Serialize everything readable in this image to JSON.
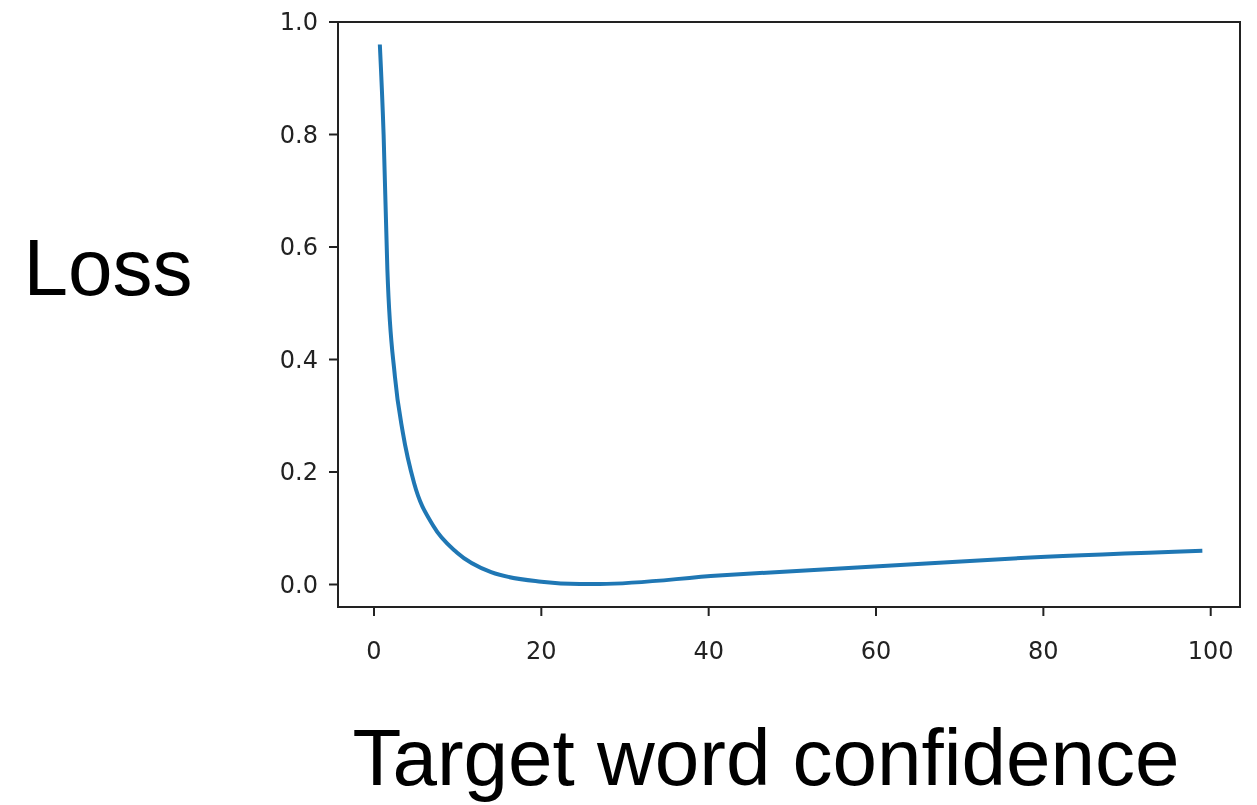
{
  "chart_data": {
    "type": "line",
    "xlabel": "Target word confidence",
    "ylabel": "Loss",
    "xlim": [
      -4.3,
      103.5
    ],
    "ylim": [
      -0.04,
      1.0
    ],
    "xticks": [
      0,
      20,
      40,
      60,
      80,
      100
    ],
    "yticks": [
      {
        "value": 0,
        "label": "0.0"
      },
      {
        "value": 0.2,
        "label": "0.2"
      },
      {
        "value": 0.4,
        "label": "0.4"
      },
      {
        "value": 0.6,
        "label": "0.6"
      },
      {
        "value": 0.8,
        "label": "0.8"
      },
      {
        "value": 1,
        "label": "1.0"
      }
    ],
    "grid": false,
    "series": [
      {
        "color": "#1f77b4",
        "x": [
          0.7,
          1.15,
          1.6,
          2.5,
          3.45,
          4.8,
          7.1,
          9.9,
          14,
          20,
          24.6,
          27,
          41.2,
          59.8,
          78.5,
          99
        ],
        "values": [
          0.96,
          0.8,
          0.56,
          0.37,
          0.27,
          0.18,
          0.104,
          0.057,
          0.022,
          0.005,
          0.001,
          0.001,
          0.016,
          0.032,
          0.048,
          0.06
        ]
      }
    ]
  }
}
